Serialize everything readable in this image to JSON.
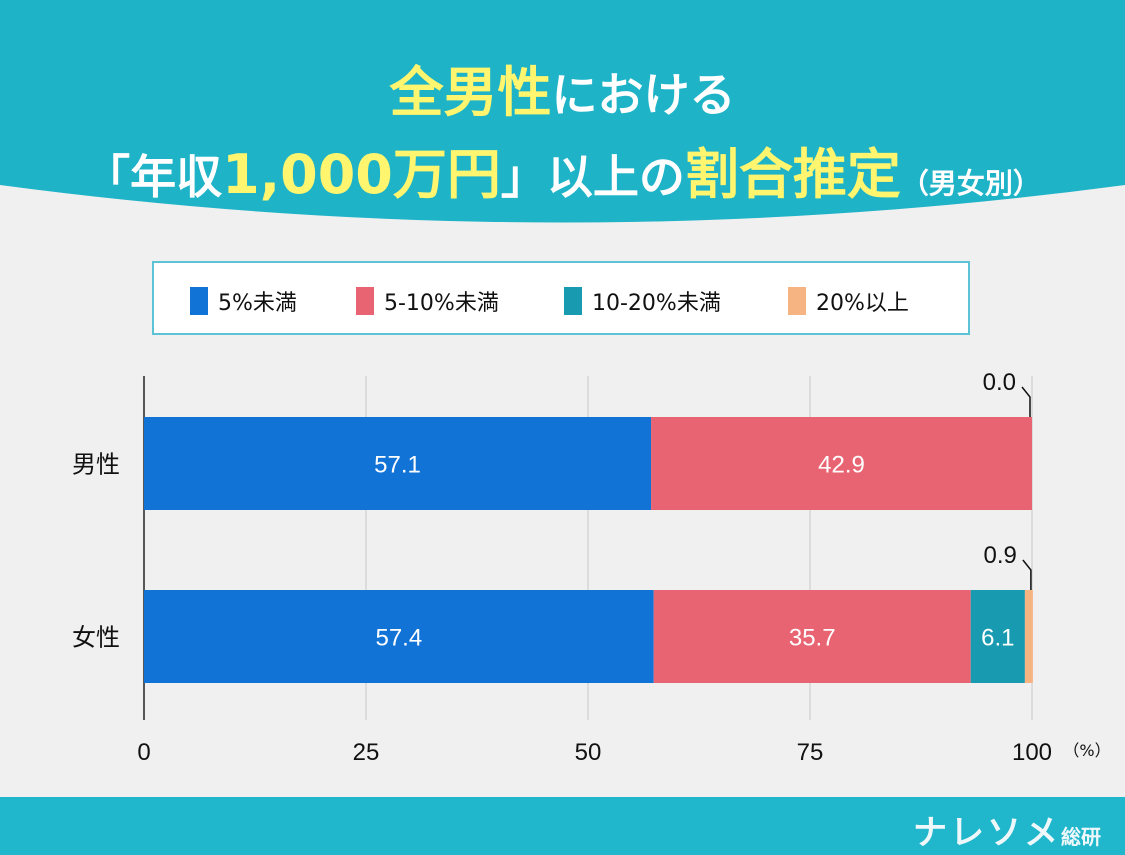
{
  "header": {
    "line1": {
      "highlight": "全男性",
      "rest": "における"
    },
    "line2": {
      "part1": "「年収",
      "highlight1": "1,000万円",
      "part2": "」以上の",
      "highlight2": "割合推定",
      "suffix": "（男女別）"
    }
  },
  "colors": {
    "header_bg": "#1fb3c8",
    "title_highlight": "#fff56e",
    "footer_bg": "#20b7cc"
  },
  "footer": {
    "logo": "ナレソメ",
    "logo_suffix": "総研"
  },
  "chart_data": {
    "type": "bar",
    "orientation": "horizontal",
    "stacked": true,
    "title": "全男性における「年収1,000万円」以上の割合推定（男女別）",
    "categories": [
      "男性",
      "女性"
    ],
    "series": [
      {
        "name": "5%未満",
        "color": "#1273d6",
        "values": [
          57.1,
          57.4
        ],
        "labels": [
          "57.1",
          "57.4"
        ]
      },
      {
        "name": "5-10%未満",
        "color": "#e86472",
        "values": [
          42.9,
          35.7
        ],
        "labels": [
          "42.9",
          "35.7"
        ]
      },
      {
        "name": "10-20%未満",
        "color": "#189bb1",
        "values": [
          0,
          6.1
        ],
        "labels": [
          "",
          "6.1"
        ]
      },
      {
        "name": "20%以上",
        "color": "#f5b482",
        "values": [
          0.0,
          0.9
        ],
        "labels": [
          "0.0",
          "0.9"
        ]
      }
    ],
    "xlim": [
      0,
      100
    ],
    "xticks": [
      "0",
      "25",
      "50",
      "75",
      "100"
    ],
    "xunit": "（%）",
    "grid": true,
    "legend_position": "top"
  }
}
